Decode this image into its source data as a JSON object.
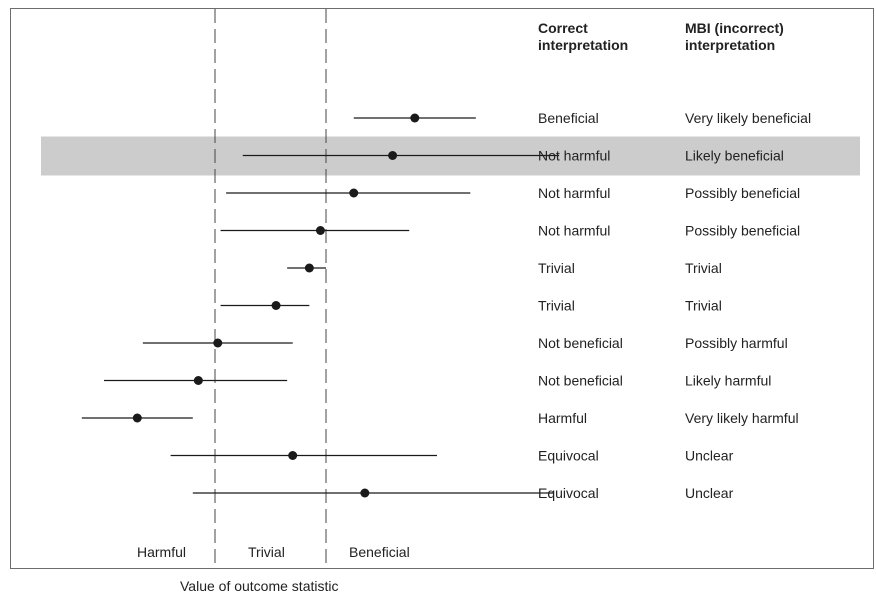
{
  "chart_data": {
    "type": "forest",
    "columns": {
      "correct": "Correct\ninterpretation",
      "mbi": "MBI (incorrect)\ninterpretation"
    },
    "zones": [
      "Harmful",
      "Trivial",
      "Beneficial"
    ],
    "xlabel": "Value of outcome statistic",
    "thresholds": [
      -1,
      1
    ],
    "xlim": [
      -4.5,
      6.5
    ],
    "highlight_row": 1,
    "highlight_color": "#cccccc",
    "rows": [
      {
        "estimate": 2.6,
        "lower": 1.5,
        "upper": 3.7,
        "correct": "Beneficial",
        "mbi": "Very likely beneficial"
      },
      {
        "estimate": 2.2,
        "lower": -0.5,
        "upper": 5.2,
        "correct": "Not harmful",
        "mbi": "Likely beneficial"
      },
      {
        "estimate": 1.5,
        "lower": -0.8,
        "upper": 3.6,
        "correct": "Not harmful",
        "mbi": "Possibly beneficial"
      },
      {
        "estimate": 0.9,
        "lower": -0.9,
        "upper": 2.5,
        "correct": "Not harmful",
        "mbi": "Possibly beneficial"
      },
      {
        "estimate": 0.7,
        "lower": 0.3,
        "upper": 1.0,
        "correct": "Trivial",
        "mbi": "Trivial"
      },
      {
        "estimate": 0.1,
        "lower": -0.9,
        "upper": 0.7,
        "correct": "Trivial",
        "mbi": "Trivial"
      },
      {
        "estimate": -0.95,
        "lower": -2.3,
        "upper": 0.4,
        "correct": "Not beneficial",
        "mbi": "Possibly harmful"
      },
      {
        "estimate": -1.3,
        "lower": -3.0,
        "upper": 0.3,
        "correct": "Not beneficial",
        "mbi": "Likely harmful"
      },
      {
        "estimate": -2.4,
        "lower": -3.4,
        "upper": -1.4,
        "correct": "Harmful",
        "mbi": "Very likely harmful"
      },
      {
        "estimate": 0.4,
        "lower": -1.8,
        "upper": 3.0,
        "correct": "Equivocal",
        "mbi": "Unclear"
      },
      {
        "estimate": 1.7,
        "lower": -1.4,
        "upper": 5.1,
        "correct": "Equivocal",
        "mbi": "Unclear"
      }
    ]
  }
}
